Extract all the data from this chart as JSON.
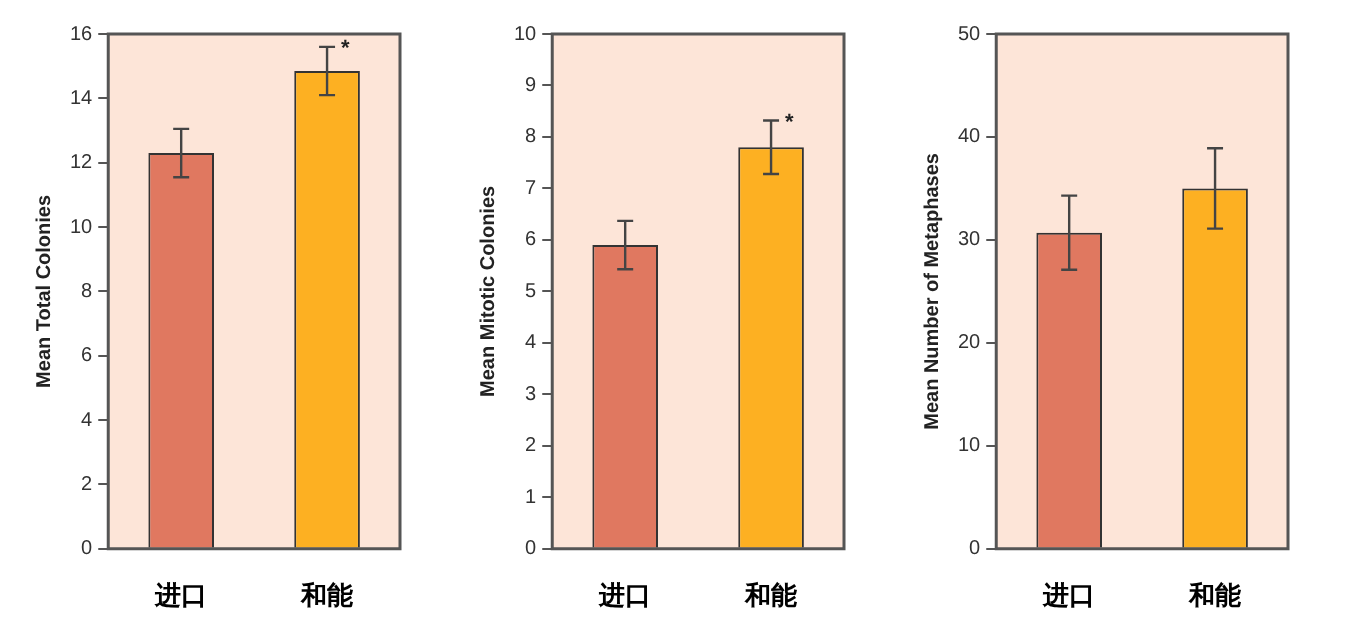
{
  "chart_data": [
    {
      "type": "bar",
      "ylabel": "Mean Total Colonies",
      "categories": [
        "进口",
        "和能"
      ],
      "values": [
        12.3,
        14.85
      ],
      "colors": [
        "#e07860",
        "#fdb022"
      ],
      "errors": [
        0.75,
        0.75
      ],
      "ylim": [
        0,
        16
      ],
      "yticks": [
        0,
        2,
        4,
        6,
        8,
        10,
        12,
        14,
        16
      ],
      "annotations": [
        "*"
      ]
    },
    {
      "type": "bar",
      "ylabel": "Mean Mitotic Colonies",
      "categories": [
        "进口",
        "和能"
      ],
      "values": [
        5.9,
        7.8
      ],
      "colors": [
        "#e07860",
        "#fdb022"
      ],
      "errors": [
        0.47,
        0.52
      ],
      "ylim": [
        0,
        10
      ],
      "yticks": [
        0,
        1,
        2,
        3,
        4,
        5,
        6,
        7,
        8,
        9,
        10
      ],
      "annotations": [
        "*"
      ]
    },
    {
      "type": "bar",
      "ylabel": "Mean Number of Metaphases",
      "categories": [
        "进口",
        "和能"
      ],
      "values": [
        30.7,
        35.0
      ],
      "colors": [
        "#e07860",
        "#fdb022"
      ],
      "errors": [
        3.6,
        3.9
      ],
      "ylim": [
        0,
        50
      ],
      "yticks": [
        0,
        10,
        20,
        30,
        40,
        50
      ]
    }
  ]
}
